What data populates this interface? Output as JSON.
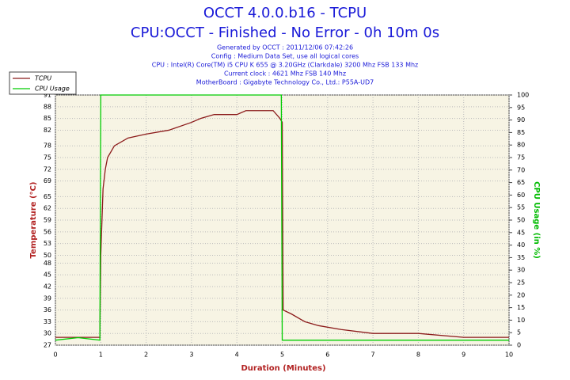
{
  "chart_data": {
    "type": "line",
    "title": "OCCT 4.0.0.b16 - TCPU",
    "subtitle": "CPU:OCCT - Finished - No Error - 0h 10m 0s",
    "info": [
      "Generated by OCCT : 2011/12/06 07:42:26",
      "Config : Medium Data Set, use all logical cores",
      "CPU : Intel(R) Core(TM) i5 CPU K 655 @ 3.20GHz (Clarkdale) 3200 Mhz FSB 133 Mhz",
      "Current clock : 4621 Mhz FSB 140 Mhz",
      "MotherBoard : Gigabyte Technology Co., Ltd.: P55A-UD7"
    ],
    "x_label": "Duration (Minutes)",
    "y_label": "Temperature (°C)",
    "y2_label": "CPU Usage (in %)",
    "xlim": [
      0,
      10
    ],
    "xticks": [
      0,
      1,
      2,
      3,
      4,
      5,
      6,
      7,
      8,
      9,
      10
    ],
    "ylim": [
      27,
      91
    ],
    "yticks": [
      27,
      30,
      33,
      36,
      39,
      42,
      45,
      48,
      50,
      53,
      56,
      59,
      62,
      65,
      69,
      72,
      75,
      78,
      82,
      85,
      88,
      91
    ],
    "y2lim": [
      0,
      100
    ],
    "y2ticks": [
      0,
      5,
      10,
      15,
      20,
      25,
      30,
      35,
      40,
      45,
      50,
      55,
      60,
      65,
      70,
      75,
      80,
      85,
      90,
      95,
      100
    ],
    "grid": true,
    "legend": "top-left",
    "series": [
      {
        "name": "TCPU",
        "color": "#8b1a1a",
        "x": [
          0,
          0.5,
          0.98,
          1.0,
          1.05,
          1.1,
          1.15,
          1.3,
          1.6,
          2.0,
          2.5,
          3.0,
          3.2,
          3.5,
          4.0,
          4.2,
          4.8,
          4.95,
          5.0,
          5.02,
          5.2,
          5.5,
          5.8,
          6.3,
          7.0,
          8.0,
          9.0,
          10.0
        ],
        "values": [
          29,
          29,
          29,
          50,
          67,
          72,
          75,
          78,
          80,
          81,
          82,
          84,
          85,
          86,
          86,
          87,
          87,
          85,
          84,
          36,
          35,
          33,
          32,
          31,
          30,
          30,
          29,
          29
        ]
      },
      {
        "name": "CPU Usage",
        "color": "#00cc00",
        "axis": "y2",
        "x": [
          0,
          0.5,
          0.98,
          1.0,
          4.98,
          5.0,
          6.0,
          8.0,
          10.0
        ],
        "values": [
          2,
          3,
          2,
          100,
          100,
          2,
          2,
          2,
          2
        ]
      }
    ]
  }
}
